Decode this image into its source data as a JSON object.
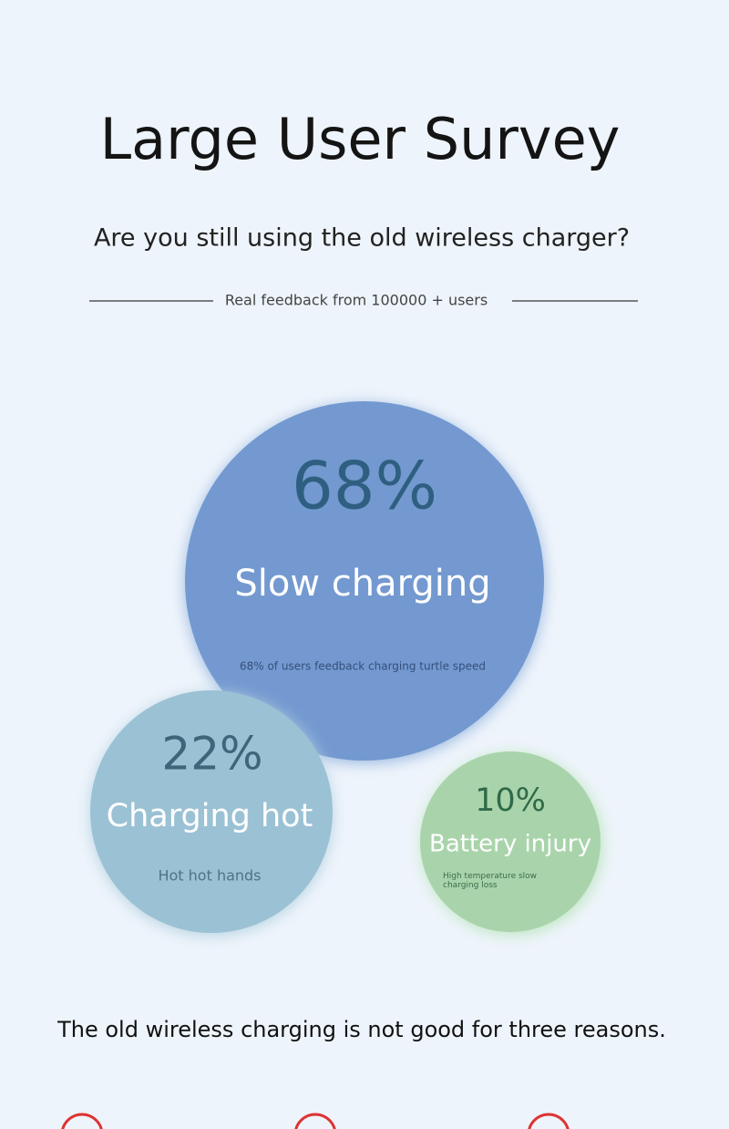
{
  "header": {
    "title": "Large User Survey",
    "question": "Are you still using the old wireless charger?",
    "feedback": "Real feedback from 100000 + users"
  },
  "bubbles": [
    {
      "percent": "68%",
      "label": "Slow charging",
      "note": "68% of users feedback charging turtle speed"
    },
    {
      "percent": "22%",
      "label": "Charging hot",
      "note": "Hot hot hands"
    },
    {
      "percent": "10%",
      "label": "Battery injury",
      "note": "High temperature slow charging loss"
    }
  ],
  "footer": {
    "text": "The old wireless charging is not good for three reasons."
  }
}
